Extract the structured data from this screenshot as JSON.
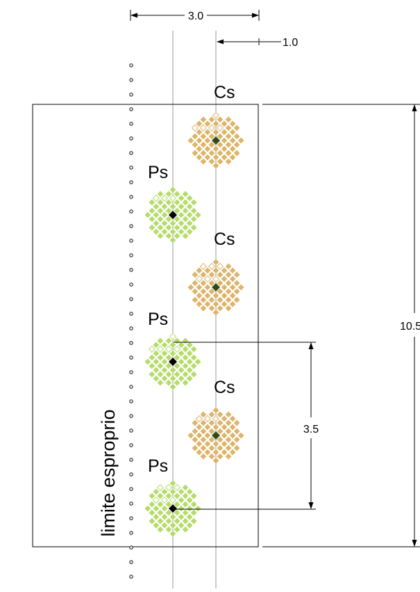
{
  "dimensions": {
    "width_label": "3.0",
    "offset_label": "1.0",
    "height_label": "10.5",
    "spacing_label": "3.5"
  },
  "boundary": {
    "label": "limite esproprio"
  },
  "plants": [
    {
      "label": "Cs",
      "kind": "Cs"
    },
    {
      "label": "Ps",
      "kind": "Ps"
    },
    {
      "label": "Cs",
      "kind": "Cs"
    },
    {
      "label": "Ps",
      "kind": "Ps"
    },
    {
      "label": "Cs",
      "kind": "Cs"
    },
    {
      "label": "Ps",
      "kind": "Ps"
    }
  ],
  "colors": {
    "Cs": "#dcb56b",
    "Ps": "#b5dc6b",
    "line": "#000000",
    "guide": "#9a9a9a"
  }
}
